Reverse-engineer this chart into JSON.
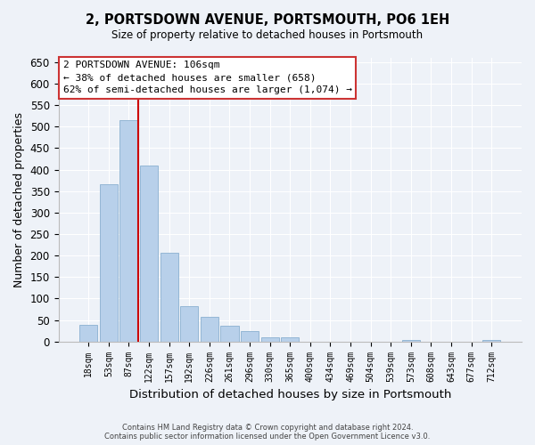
{
  "title": "2, PORTSDOWN AVENUE, PORTSMOUTH, PO6 1EH",
  "subtitle": "Size of property relative to detached houses in Portsmouth",
  "xlabel": "Distribution of detached houses by size in Portsmouth",
  "ylabel": "Number of detached properties",
  "bar_labels": [
    "18sqm",
    "53sqm",
    "87sqm",
    "122sqm",
    "157sqm",
    "192sqm",
    "226sqm",
    "261sqm",
    "296sqm",
    "330sqm",
    "365sqm",
    "400sqm",
    "434sqm",
    "469sqm",
    "504sqm",
    "539sqm",
    "573sqm",
    "608sqm",
    "643sqm",
    "677sqm",
    "712sqm"
  ],
  "bar_values": [
    38,
    365,
    515,
    410,
    207,
    83,
    57,
    37,
    25,
    10,
    10,
    0,
    0,
    0,
    0,
    0,
    3,
    0,
    0,
    0,
    3
  ],
  "bar_color": "#b8d0ea",
  "bar_edge_color": "#8ab0d0",
  "vline_color": "#cc0000",
  "ylim": [
    0,
    660
  ],
  "yticks": [
    0,
    50,
    100,
    150,
    200,
    250,
    300,
    350,
    400,
    450,
    500,
    550,
    600,
    650
  ],
  "annotation_title": "2 PORTSDOWN AVENUE: 106sqm",
  "annotation_line1": "← 38% of detached houses are smaller (658)",
  "annotation_line2": "62% of semi-detached houses are larger (1,074) →",
  "footer_line1": "Contains HM Land Registry data © Crown copyright and database right 2024.",
  "footer_line2": "Contains public sector information licensed under the Open Government Licence v3.0.",
  "fig_width": 6.0,
  "fig_height": 5.0,
  "bg_color": "#eef2f8"
}
